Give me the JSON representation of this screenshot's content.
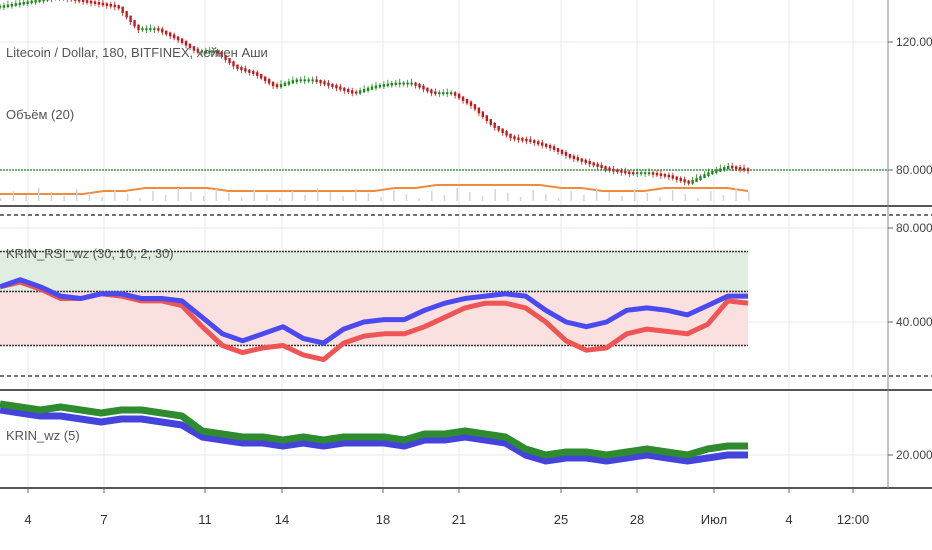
{
  "colors": {
    "grid": "#e6e9ef",
    "candle_up": "#1b8a1b",
    "candle_down": "#c21b1b",
    "volume_ma": "#f08a3c",
    "hline_green": "#2a7a2a",
    "rsi_blue": "#4a4af0",
    "rsi_red": "#f05555",
    "zone_green": "#dfeee0",
    "zone_red": "#fbe0e0",
    "wz_green": "#2e8b2e",
    "wz_blue": "#4444dd",
    "separator": "#555555"
  },
  "pane_titles": {
    "main": "Litecoin / Dollar, 180, BITFINEX, хейкен Аши",
    "volume": "Объём (20)",
    "rsi": "KRIN_RSI_wz (30, 10, 2, 30)",
    "wz": "KRIN_wz (5)"
  },
  "price_axis": {
    "main_labels": [
      "120.000",
      "80.000"
    ],
    "rsi_labels": [
      "80.0000",
      "40.0000"
    ],
    "wz_labels": [
      "20.0000"
    ]
  },
  "time_axis": {
    "labels": [
      "4",
      "7",
      "11",
      "14",
      "18",
      "21",
      "25",
      "28",
      "Июл",
      "4",
      "12:00"
    ]
  },
  "chart_data": [
    {
      "type": "candlestick",
      "title": "Litecoin / Dollar, 180, BITFINEX, хейкен Аши",
      "y_tick_labels": [
        "120.000",
        "80.000"
      ],
      "close_path": [
        [
          0,
          131
        ],
        [
          3,
          134
        ],
        [
          5,
          132
        ],
        [
          6,
          131
        ],
        [
          7,
          124
        ],
        [
          8,
          124
        ],
        [
          9,
          121
        ],
        [
          10,
          117
        ],
        [
          11,
          117
        ],
        [
          12,
          112
        ],
        [
          13,
          110
        ],
        [
          14,
          106
        ],
        [
          15,
          108
        ],
        [
          16,
          108
        ],
        [
          17,
          106
        ],
        [
          18,
          104
        ],
        [
          19,
          106
        ],
        [
          20,
          107
        ],
        [
          21,
          107
        ],
        [
          22,
          104
        ],
        [
          23,
          104
        ],
        [
          24,
          100
        ],
        [
          25,
          94
        ],
        [
          26,
          90
        ],
        [
          27,
          89
        ],
        [
          28,
          87
        ],
        [
          29,
          84
        ],
        [
          30,
          82
        ],
        [
          31,
          80
        ],
        [
          32,
          79
        ],
        [
          33,
          79
        ],
        [
          34,
          78
        ],
        [
          35,
          76
        ],
        [
          36,
          79
        ],
        [
          37,
          81
        ],
        [
          38,
          80
        ]
      ],
      "horizontal_line": 80
    },
    {
      "type": "line",
      "title": "Объём (20)",
      "series": [
        {
          "values": [
            2,
            2,
            2,
            2,
            2,
            3,
            3,
            4,
            4,
            4,
            4,
            3,
            3,
            3,
            3,
            3,
            3,
            3,
            3,
            4,
            4,
            5,
            5,
            5,
            5,
            5,
            5,
            4,
            4,
            3,
            3,
            3,
            4,
            4,
            4,
            4,
            3
          ]
        }
      ]
    },
    {
      "type": "line",
      "title": "KRIN_RSI_wz (30, 10, 2, 30)",
      "y_tick_labels": [
        "80.0000",
        "40.0000"
      ],
      "reference_lines": [
        70,
        53,
        30
      ],
      "series": [
        {
          "values": [
            55,
            58,
            55,
            51,
            50,
            52,
            52,
            50,
            50,
            49,
            42,
            35,
            32,
            35,
            38,
            33,
            31,
            37,
            40,
            41,
            41,
            45,
            48,
            50,
            51,
            52,
            51,
            45,
            40,
            38,
            40,
            45,
            46,
            45,
            43,
            47,
            51,
            51
          ]
        },
        {
          "values": [
            55,
            57,
            54,
            50,
            50,
            52,
            51,
            49,
            49,
            47,
            38,
            30,
            27,
            29,
            30,
            26,
            24,
            31,
            34,
            35,
            35,
            38,
            42,
            46,
            48,
            48,
            46,
            40,
            32,
            28,
            29,
            35,
            37,
            36,
            35,
            39,
            49,
            48
          ]
        }
      ]
    },
    {
      "type": "line",
      "title": "KRIN_wz (5)",
      "y_tick_labels": [
        "20.0000"
      ],
      "series": [
        {
          "values": [
            37,
            36,
            35,
            36,
            35,
            34,
            35,
            35,
            34,
            33,
            28,
            27,
            26,
            26,
            25,
            26,
            25,
            26,
            26,
            26,
            25,
            27,
            27,
            28,
            27,
            26,
            22,
            20,
            21,
            21,
            20,
            21,
            22,
            21,
            20,
            22,
            23,
            23
          ]
        },
        {
          "values": [
            35,
            34,
            33,
            33,
            32,
            31,
            32,
            32,
            31,
            30,
            26,
            25,
            24,
            24,
            23,
            24,
            23,
            24,
            24,
            24,
            23,
            25,
            25,
            26,
            25,
            24,
            20,
            18,
            19,
            19,
            18,
            19,
            20,
            19,
            18,
            19,
            20,
            20
          ]
        }
      ]
    }
  ]
}
